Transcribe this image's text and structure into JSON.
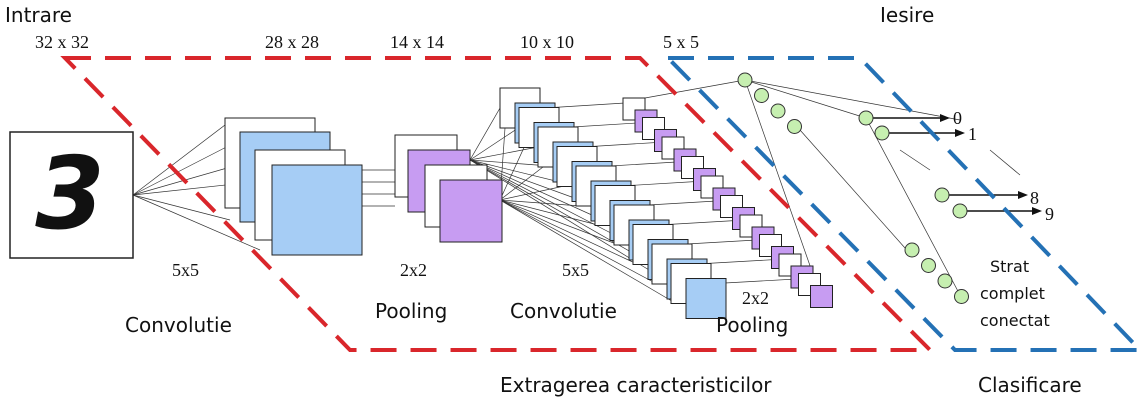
{
  "input": {
    "label": "Intrare",
    "size": "32 x 32",
    "digit": "3"
  },
  "layers": [
    {
      "size": "28 x 28",
      "kernel": "5x5",
      "operation": "Convolutie"
    },
    {
      "size": "14 x 14",
      "kernel": "2x2",
      "operation": "Pooling"
    },
    {
      "size": "10 x 10",
      "kernel": "5x5",
      "operation": "Convolutie"
    },
    {
      "size": "5 x 5",
      "kernel": "2x2",
      "operation": "Pooling"
    }
  ],
  "output": {
    "label": "Iesire",
    "classes": [
      "0",
      "1",
      "8",
      "9"
    ],
    "layer_label": [
      "Strat",
      "complet",
      "conectat"
    ]
  },
  "regions": {
    "feature_extraction": "Extragerea caracteristicilor",
    "classification": "Clasificare"
  }
}
